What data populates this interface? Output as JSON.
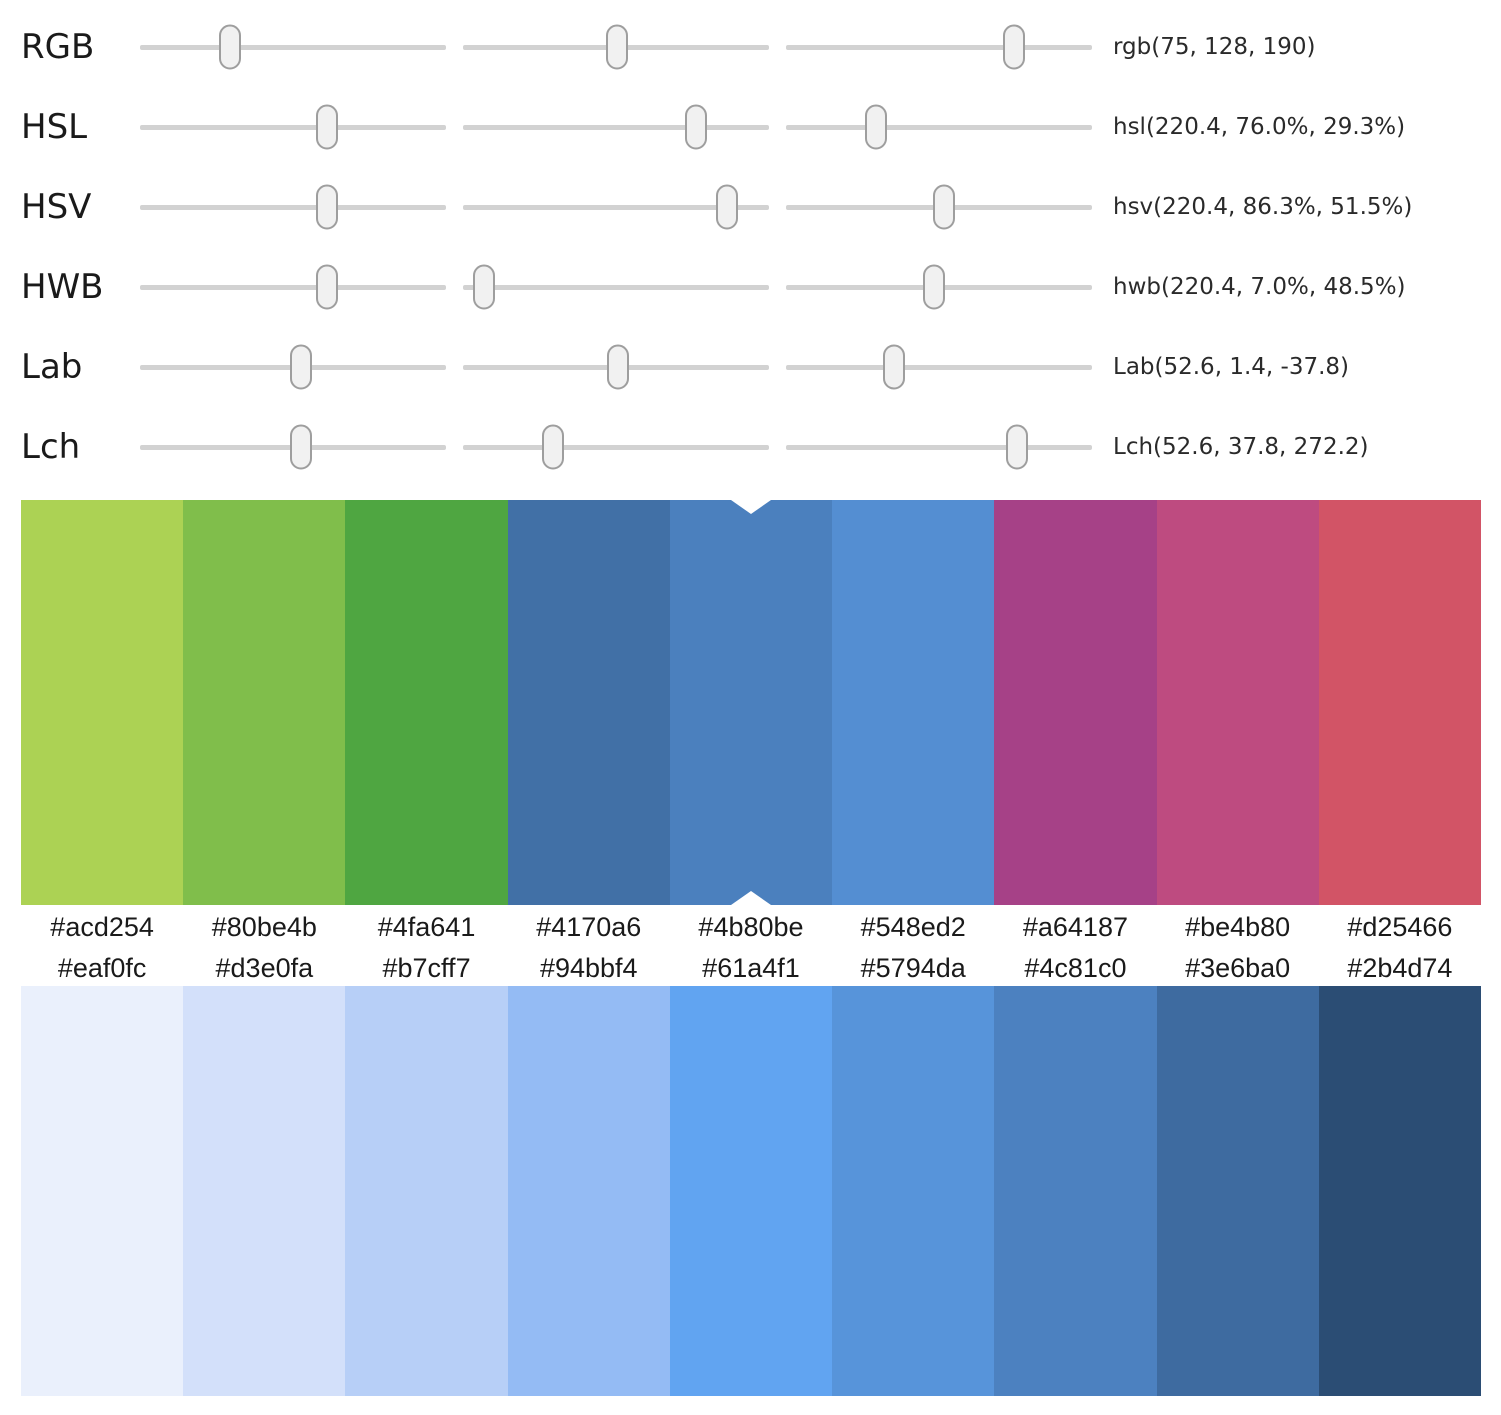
{
  "color_models": {
    "rows": [
      {
        "label": "RGB",
        "value": "rgb(75, 128, 190)",
        "thumbs": [
          29.4,
          50.2,
          74.5
        ]
      },
      {
        "label": "HSL",
        "value": "hsl(220.4, 76.0%, 29.3%)",
        "thumbs": [
          61.2,
          76.0,
          29.3
        ]
      },
      {
        "label": "HSV",
        "value": "hsv(220.4, 86.3%, 51.5%)",
        "thumbs": [
          61.2,
          86.3,
          51.5
        ]
      },
      {
        "label": "HWB",
        "value": "hwb(220.4, 7.0%, 48.5%)",
        "thumbs": [
          61.2,
          7.0,
          48.5
        ]
      },
      {
        "label": "Lab",
        "value": "Lab(52.6, 1.4, -37.8)",
        "thumbs": [
          52.6,
          50.5,
          35.2
        ]
      },
      {
        "label": "Lch",
        "value": "Lch(52.6, 37.8, 272.2)",
        "thumbs": [
          52.6,
          29.5,
          75.6
        ]
      }
    ]
  },
  "hue_palette": {
    "selected_index": 4,
    "swatches": [
      "#acd254",
      "#80be4b",
      "#4fa641",
      "#4170a6",
      "#4b80be",
      "#548ed2",
      "#a64187",
      "#be4b80",
      "#d25466"
    ]
  },
  "tint_shade_palette": {
    "swatches": [
      "#eaf0fc",
      "#d3e0fa",
      "#b7cff7",
      "#94bbf4",
      "#61a4f1",
      "#5794da",
      "#4c81c0",
      "#3e6ba0",
      "#2b4d74"
    ]
  },
  "colors": {
    "slider_track": "#d2d2d2",
    "slider_thumb_fill": "#f1f1f1",
    "slider_thumb_border": "#9e9e9e",
    "notch": "#ffffff",
    "current_color": "#4b80be"
  }
}
